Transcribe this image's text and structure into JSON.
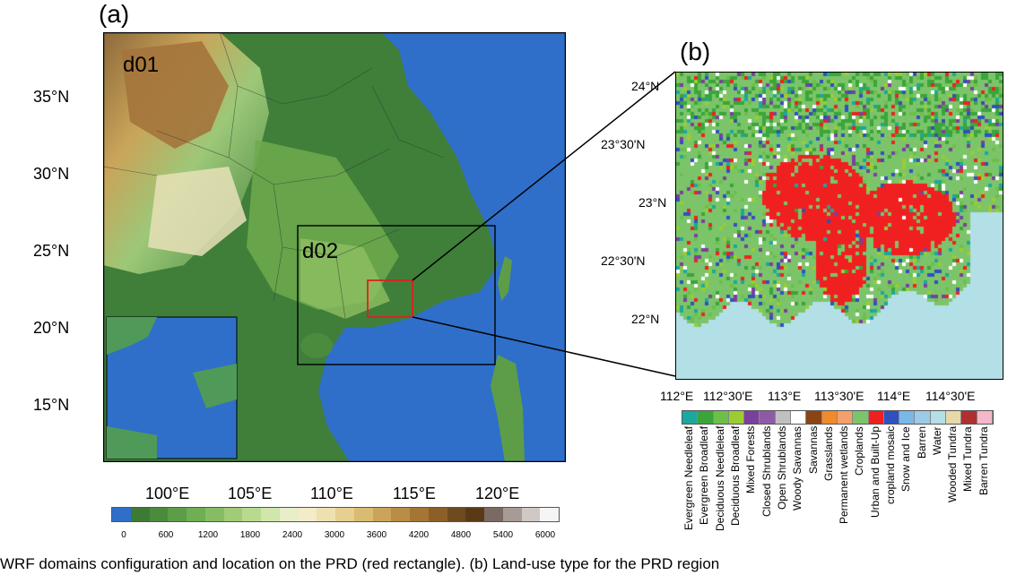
{
  "panel_a": {
    "label": "(a)",
    "domain_outer": "d01",
    "domain_inner": "d02",
    "lat_ticks": [
      "35°N",
      "30°N",
      "25°N",
      "20°N",
      "15°N"
    ],
    "lon_ticks": [
      "100°E",
      "105°E",
      "110°E",
      "115°E",
      "120°E"
    ],
    "colorbar_ticks": [
      "0",
      "600",
      "1200",
      "1800",
      "2400",
      "3000",
      "3600",
      "4200",
      "4800",
      "5400",
      "6000"
    ],
    "colorbar_colors": [
      "#2f6fc9",
      "#3d7a36",
      "#4b8b3e",
      "#5d9d48",
      "#6fae52",
      "#86bd62",
      "#a0cc78",
      "#b8da90",
      "#d0e6aa",
      "#e8eec8",
      "#f2ecc8",
      "#efe0b0",
      "#e6cf8f",
      "#d9bb72",
      "#c9a45a",
      "#b88d45",
      "#a47535",
      "#8c5f28",
      "#6f4a1e",
      "#5a3a16",
      "#7a6a62",
      "#a89a94",
      "#cfc8c4",
      "#f5f5f5"
    ],
    "colors": {
      "ocean": "#2f6fc9",
      "lowland": "#3f7f3a",
      "plateau": "#a8874f",
      "zoom_box": "#e02020"
    }
  },
  "panel_b": {
    "label": "(b)",
    "lat_ticks": [
      "24°N",
      "23°30'N",
      "23°N",
      "22°30'N",
      "22°N"
    ],
    "lon_ticks": [
      "112°E",
      "112°30'E",
      "113°E",
      "113°30'E",
      "114°E",
      "114°30'E"
    ],
    "landcover_classes": [
      {
        "name": "Evergreen Needleleaf",
        "color": "#1aa8a0"
      },
      {
        "name": "Evergreen Broadleaf",
        "color": "#3aa53a"
      },
      {
        "name": "Deciduous Needleleaf",
        "color": "#6cc04a"
      },
      {
        "name": "Deciduous Broadleaf",
        "color": "#9acd32"
      },
      {
        "name": "Mixed Forests",
        "color": "#7b3f9e"
      },
      {
        "name": "Closed Shrublands",
        "color": "#8e5aa8"
      },
      {
        "name": "Open Shrublands",
        "color": "#c0c0c0"
      },
      {
        "name": "Woody Savannas",
        "color": "#ffffff"
      },
      {
        "name": "Savannas",
        "color": "#8b4513"
      },
      {
        "name": "Grasslands",
        "color": "#f08a2a"
      },
      {
        "name": "Permanent wetlands",
        "color": "#f4a06a"
      },
      {
        "name": "Croplands",
        "color": "#7cc46a"
      },
      {
        "name": "Urban and Built-Up",
        "color": "#f02020"
      },
      {
        "name": "cropland mosaic",
        "color": "#3050c0"
      },
      {
        "name": "Snow and Ice",
        "color": "#7ab8e8"
      },
      {
        "name": "Barren",
        "color": "#9ccbe8"
      },
      {
        "name": "Water",
        "color": "#b3dfe6"
      },
      {
        "name": "Wooded Tundra",
        "color": "#e8d8a8"
      },
      {
        "name": "Mixed Tundra",
        "color": "#b03030"
      },
      {
        "name": "Barren Tundra",
        "color": "#f4b8c8"
      }
    ],
    "colors": {
      "land": "#7cc46a",
      "water": "#b3dfe6",
      "urban": "#f02020"
    }
  },
  "caption": "WRF domains configuration and location on the PRD (red rectangle). (b) Land-use type for the PRD region"
}
